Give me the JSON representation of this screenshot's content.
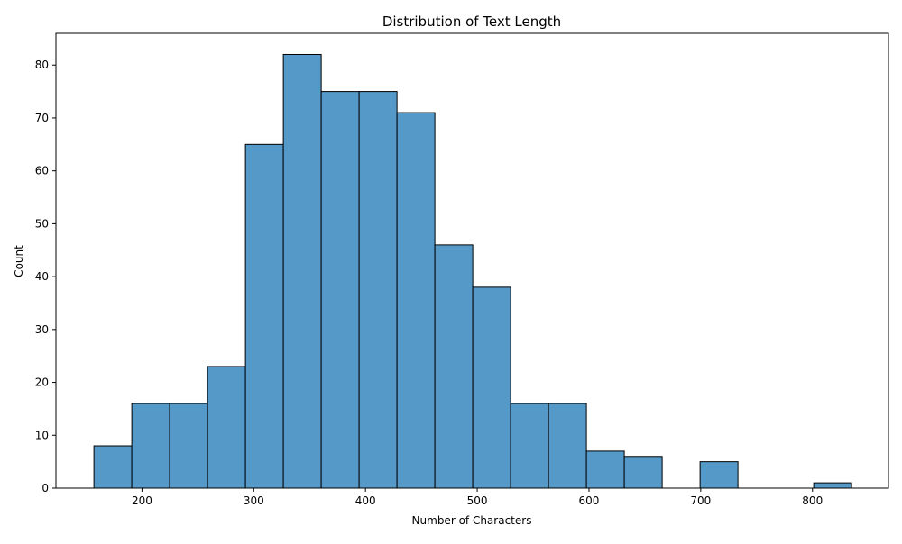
{
  "chart_data": {
    "type": "bar",
    "title": "Distribution of Text Length",
    "xlabel": "Number of Characters",
    "ylabel": "Count",
    "xlim": [
      123,
      868
    ],
    "ylim": [
      0,
      86
    ],
    "xticks": [
      200,
      300,
      400,
      500,
      600,
      700,
      800
    ],
    "yticks": [
      0,
      10,
      20,
      30,
      40,
      50,
      60,
      70,
      80
    ],
    "bar_color": "#5499c7",
    "edge_color": "#000000",
    "grid": false,
    "bins": [
      {
        "x0": 157.0,
        "x1": 190.9,
        "count": 8
      },
      {
        "x0": 190.9,
        "x1": 224.8,
        "count": 16
      },
      {
        "x0": 224.8,
        "x1": 258.7,
        "count": 16
      },
      {
        "x0": 258.7,
        "x1": 292.6,
        "count": 23
      },
      {
        "x0": 292.6,
        "x1": 326.5,
        "count": 65
      },
      {
        "x0": 326.5,
        "x1": 360.4,
        "count": 82
      },
      {
        "x0": 360.4,
        "x1": 394.3,
        "count": 75
      },
      {
        "x0": 394.3,
        "x1": 428.2,
        "count": 75
      },
      {
        "x0": 428.2,
        "x1": 462.1,
        "count": 71
      },
      {
        "x0": 462.1,
        "x1": 496.0,
        "count": 46
      },
      {
        "x0": 496.0,
        "x1": 529.9,
        "count": 38
      },
      {
        "x0": 529.9,
        "x1": 563.8,
        "count": 16
      },
      {
        "x0": 563.8,
        "x1": 597.7,
        "count": 16
      },
      {
        "x0": 597.7,
        "x1": 631.6,
        "count": 7
      },
      {
        "x0": 631.6,
        "x1": 665.5,
        "count": 6
      },
      {
        "x0": 665.5,
        "x1": 699.4,
        "count": 0
      },
      {
        "x0": 699.4,
        "x1": 733.3,
        "count": 5
      },
      {
        "x0": 733.3,
        "x1": 767.2,
        "count": 0
      },
      {
        "x0": 767.2,
        "x1": 801.1,
        "count": 0
      },
      {
        "x0": 801.1,
        "x1": 835.0,
        "count": 1
      }
    ]
  }
}
